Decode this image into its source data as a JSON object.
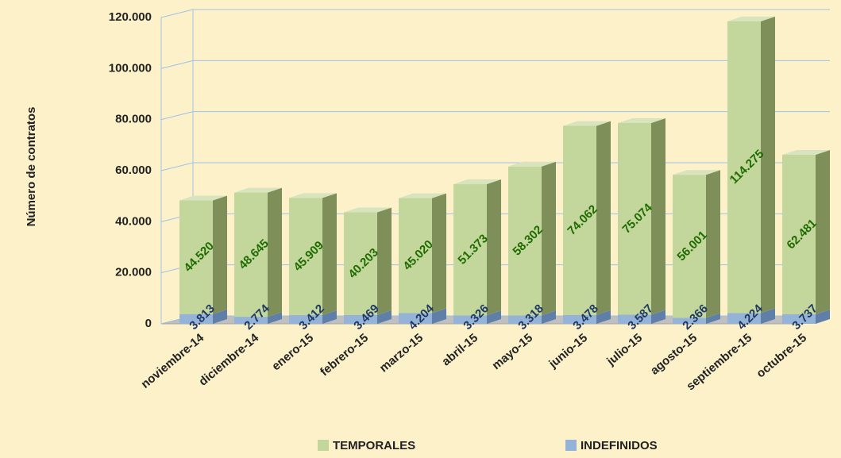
{
  "chart_data": {
    "type": "bar3d_stacked",
    "y_label": "Número de contratos",
    "categories": [
      "noviembre-14",
      "diciembre-14",
      "enero-15",
      "febrero-15",
      "marzo-15",
      "abril-15",
      "mayo-15",
      "junio-15",
      "julio-15",
      "agosto-15",
      "septiembre-15",
      "octubre-15"
    ],
    "series": [
      {
        "name": "TEMPORALES",
        "color": "#c3d69b",
        "values": [
          44520,
          48645,
          45909,
          40203,
          45020,
          51373,
          58302,
          74062,
          75074,
          56001,
          114275,
          62481
        ],
        "value_labels": [
          "44.520",
          "48.645",
          "45.909",
          "40.203",
          "45.020",
          "51.373",
          "58.302",
          "74.062",
          "75.074",
          "56.001",
          "114.275",
          "62.481"
        ]
      },
      {
        "name": "INDEFINIDOS",
        "color": "#95b3d7",
        "values": [
          3813,
          2774,
          3412,
          3469,
          4204,
          3326,
          3318,
          3478,
          3587,
          2366,
          4224,
          3737
        ],
        "value_labels": [
          "3.813",
          "2.774",
          "3.412",
          "3.469",
          "4.204",
          "3.326",
          "3.318",
          "3.478",
          "3.587",
          "2.366",
          "4.224",
          "3.737"
        ]
      }
    ],
    "ylim": [
      0,
      120000
    ],
    "yticks": [
      0,
      {
        "value": 20000,
        "label": "20.000"
      },
      {
        "value": 40000,
        "label": "40.000"
      },
      {
        "value": 60000,
        "label": "60.000"
      },
      {
        "value": 80000,
        "label": "80.000"
      },
      {
        "value": 100000,
        "label": "100.000"
      },
      {
        "value": 120000,
        "label": "120.000"
      }
    ],
    "grid": true,
    "legend": "bottom"
  }
}
